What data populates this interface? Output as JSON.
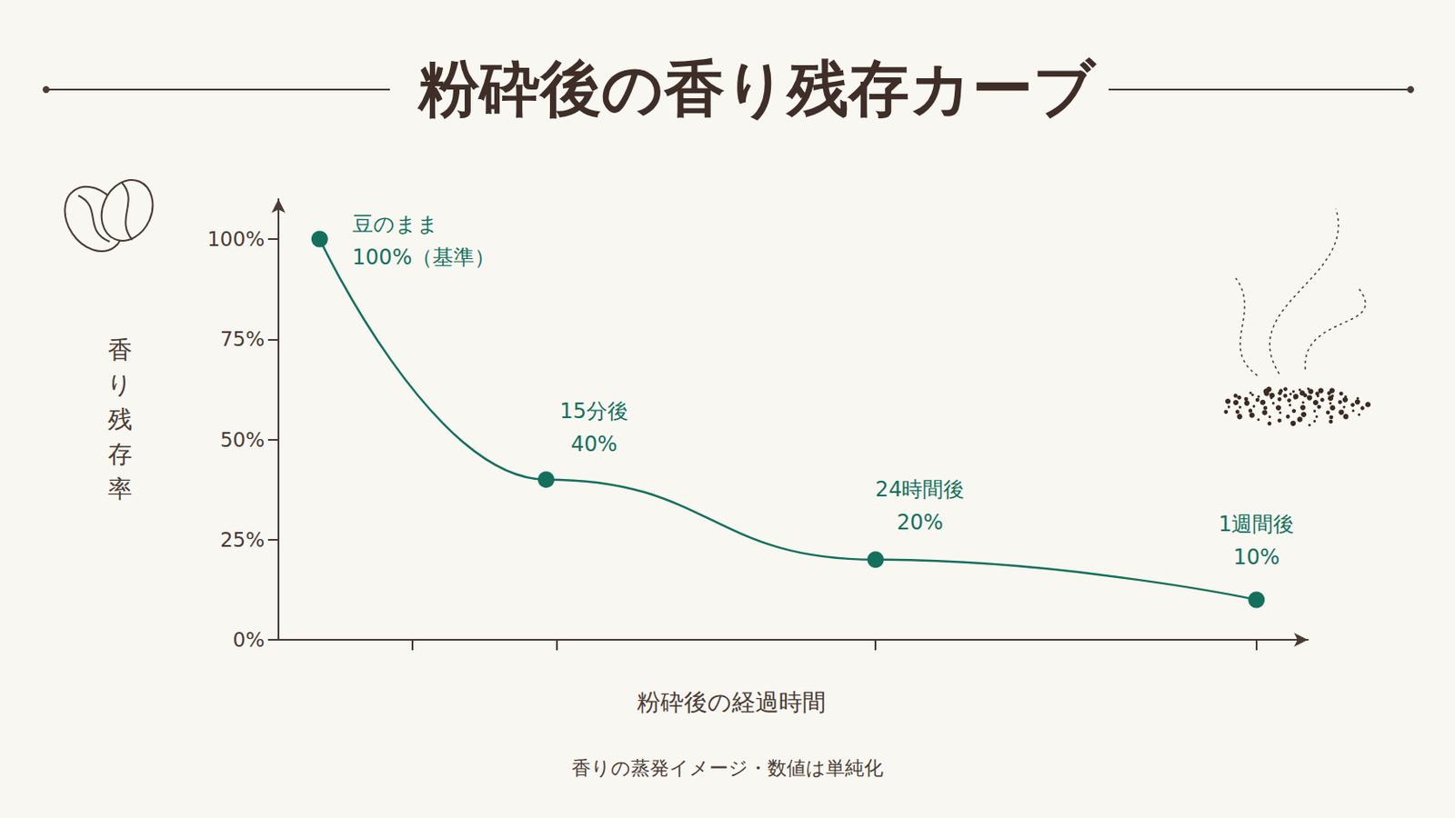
{
  "chart_data": {
    "type": "line",
    "title": "粉砕後の香り残存カーブ",
    "x_label": "粉砕後の経過時間",
    "y_label": "香り残存率",
    "footnote": "香りの蒸発イメージ・数値は単純化",
    "x": [
      4,
      26,
      58,
      95
    ],
    "values": [
      100,
      40,
      20,
      10
    ],
    "annotations": [
      "豆のまま",
      "15分後",
      "24時間後",
      "1週間後"
    ],
    "value_labels": [
      "100%（基準）",
      "40%",
      "20%",
      "10%"
    ],
    "xlim": [
      0,
      100
    ],
    "xticks": [
      13,
      27,
      58,
      95
    ],
    "ylim": [
      0,
      110
    ],
    "yticks": [
      {
        "value": 0,
        "label": "0%"
      },
      {
        "value": 25,
        "label": "25%"
      },
      {
        "value": 50,
        "label": "50%"
      },
      {
        "value": 75,
        "label": "75%"
      },
      {
        "value": 100,
        "label": "100%"
      }
    ],
    "color": "#14705d",
    "marker": "circle",
    "line_style": "solid",
    "grid": false,
    "tick_labels": "y",
    "data_labels": true
  }
}
